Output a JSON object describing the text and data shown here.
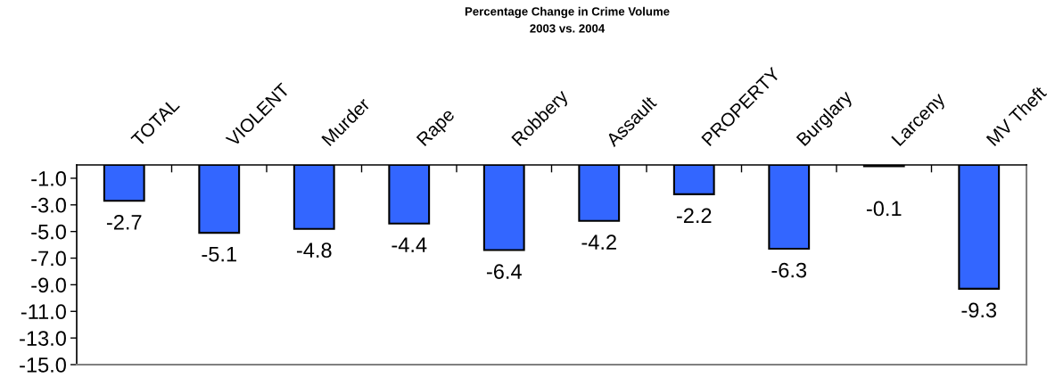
{
  "chart_data": {
    "type": "bar",
    "title": "Percentage Change in Crime Volume",
    "subtitle": "2003 vs. 2004",
    "categories": [
      "TOTAL",
      "VIOLENT",
      "Murder",
      "Rape",
      "Robbery",
      "Assault",
      "PROPERTY",
      "Burglary",
      "Larceny",
      "MV Theft"
    ],
    "values": [
      -2.7,
      -5.1,
      -4.8,
      -4.4,
      -6.4,
      -4.2,
      -2.2,
      -6.3,
      -0.1,
      -9.3
    ],
    "color": "#3366ff",
    "ylim": [
      -15,
      0
    ],
    "yticks": [
      {
        "value": -1,
        "label": "-1.0"
      },
      {
        "value": -3,
        "label": "-3.0"
      },
      {
        "value": -5,
        "label": "-5.0"
      },
      {
        "value": -7,
        "label": "-7.0"
      },
      {
        "value": -9,
        "label": "-9.0"
      },
      {
        "value": -11,
        "label": "-11.0"
      },
      {
        "value": -13,
        "label": "-13.0"
      },
      {
        "value": -15,
        "label": "-15.0"
      }
    ],
    "data_labels": true
  }
}
